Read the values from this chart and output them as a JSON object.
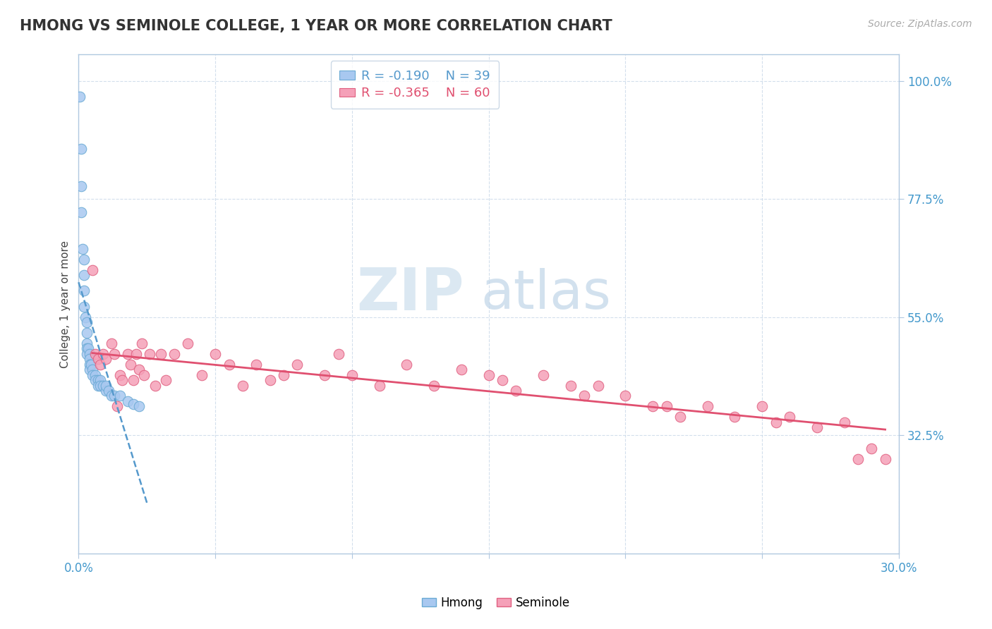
{
  "title": "HMONG VS SEMINOLE COLLEGE, 1 YEAR OR MORE CORRELATION CHART",
  "source_text": "Source: ZipAtlas.com",
  "xlabel": "",
  "ylabel": "College, 1 year or more",
  "xlim": [
    0.0,
    0.3
  ],
  "ylim": [
    0.1,
    1.05
  ],
  "xticks": [
    0.0,
    0.05,
    0.1,
    0.15,
    0.2,
    0.25,
    0.3
  ],
  "xticklabels": [
    "0.0%",
    "",
    "",
    "",
    "",
    "",
    "30.0%"
  ],
  "ytick_positions": [
    0.325,
    0.55,
    0.775,
    1.0
  ],
  "ytick_labels": [
    "32.5%",
    "55.0%",
    "77.5%",
    "100.0%"
  ],
  "hmong_color": "#a8c8f0",
  "seminole_color": "#f5a0b8",
  "hmong_edge": "#6aaad4",
  "seminole_edge": "#e06080",
  "trend_hmong_color": "#5599cc",
  "trend_seminole_color": "#e05070",
  "legend_R_hmong": "R = -0.190",
  "legend_N_hmong": "N = 39",
  "legend_R_seminole": "R = -0.365",
  "legend_N_seminole": "N = 60",
  "watermark_ZIP": "ZIP",
  "watermark_atlas": "atlas",
  "background_color": "#ffffff",
  "grid_color": "#c8d8e8",
  "hmong_x": [
    0.0005,
    0.001,
    0.001,
    0.001,
    0.0015,
    0.002,
    0.002,
    0.002,
    0.002,
    0.0025,
    0.003,
    0.003,
    0.003,
    0.003,
    0.003,
    0.0035,
    0.004,
    0.004,
    0.004,
    0.004,
    0.0045,
    0.005,
    0.005,
    0.006,
    0.006,
    0.007,
    0.007,
    0.008,
    0.008,
    0.009,
    0.01,
    0.01,
    0.011,
    0.012,
    0.013,
    0.015,
    0.018,
    0.02,
    0.022
  ],
  "hmong_y": [
    0.97,
    0.87,
    0.8,
    0.75,
    0.68,
    0.66,
    0.63,
    0.6,
    0.57,
    0.55,
    0.54,
    0.52,
    0.5,
    0.49,
    0.48,
    0.49,
    0.48,
    0.47,
    0.46,
    0.45,
    0.46,
    0.45,
    0.44,
    0.44,
    0.43,
    0.43,
    0.42,
    0.43,
    0.42,
    0.42,
    0.41,
    0.42,
    0.41,
    0.4,
    0.4,
    0.4,
    0.39,
    0.385,
    0.38
  ],
  "seminole_x": [
    0.005,
    0.006,
    0.007,
    0.008,
    0.009,
    0.01,
    0.012,
    0.013,
    0.014,
    0.015,
    0.016,
    0.018,
    0.019,
    0.02,
    0.021,
    0.022,
    0.023,
    0.024,
    0.026,
    0.028,
    0.03,
    0.032,
    0.035,
    0.04,
    0.045,
    0.05,
    0.055,
    0.06,
    0.065,
    0.07,
    0.075,
    0.08,
    0.09,
    0.095,
    0.1,
    0.11,
    0.12,
    0.13,
    0.14,
    0.15,
    0.155,
    0.16,
    0.17,
    0.18,
    0.185,
    0.19,
    0.2,
    0.21,
    0.215,
    0.22,
    0.23,
    0.24,
    0.25,
    0.255,
    0.26,
    0.27,
    0.28,
    0.285,
    0.29,
    0.295
  ],
  "seminole_y": [
    0.64,
    0.48,
    0.47,
    0.46,
    0.48,
    0.47,
    0.5,
    0.48,
    0.38,
    0.44,
    0.43,
    0.48,
    0.46,
    0.43,
    0.48,
    0.45,
    0.5,
    0.44,
    0.48,
    0.42,
    0.48,
    0.43,
    0.48,
    0.5,
    0.44,
    0.48,
    0.46,
    0.42,
    0.46,
    0.43,
    0.44,
    0.46,
    0.44,
    0.48,
    0.44,
    0.42,
    0.46,
    0.42,
    0.45,
    0.44,
    0.43,
    0.41,
    0.44,
    0.42,
    0.4,
    0.42,
    0.4,
    0.38,
    0.38,
    0.36,
    0.38,
    0.36,
    0.38,
    0.35,
    0.36,
    0.34,
    0.35,
    0.28,
    0.3,
    0.28
  ]
}
